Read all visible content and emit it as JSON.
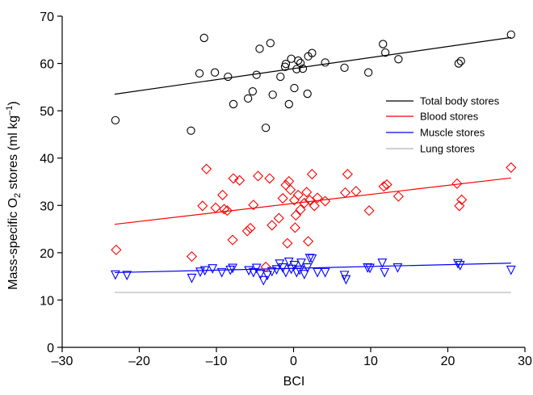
{
  "chart_data": {
    "type": "scatter",
    "xlabel": "BCI",
    "ylabel": {
      "prefix": "Mass-specific O",
      "sub": "2",
      "mid": " stores (ml kg",
      "sup": "–1",
      "suffix": ")"
    },
    "xlim": [
      -30,
      30
    ],
    "ylim": [
      0,
      70
    ],
    "xticks": [
      -30,
      -20,
      -10,
      0,
      10,
      20,
      30
    ],
    "yticks": [
      0,
      10,
      20,
      30,
      40,
      50,
      60,
      70
    ],
    "xtick_labels": [
      "–30",
      "–20",
      "–10",
      "0",
      "10",
      "20",
      "30"
    ],
    "ytick_labels": [
      "0",
      "10",
      "20",
      "30",
      "40",
      "50",
      "60",
      "70"
    ],
    "grid": false,
    "legend_position": "right",
    "series": [
      {
        "name": "Total body stores",
        "color": "#000000",
        "marker": "circle",
        "trend": [
          [
            -23.2,
            53.5
          ],
          [
            28.2,
            65.5
          ]
        ],
        "points": [
          [
            -23.1,
            48.0
          ],
          [
            -13.3,
            45.8
          ],
          [
            -12.2,
            57.9
          ],
          [
            -11.6,
            65.4
          ],
          [
            -10.2,
            58.1
          ],
          [
            -8.5,
            57.2
          ],
          [
            -7.8,
            51.4
          ],
          [
            -5.9,
            52.6
          ],
          [
            -5.3,
            54.1
          ],
          [
            -4.8,
            57.6
          ],
          [
            -4.4,
            63.1
          ],
          [
            -3.6,
            46.4
          ],
          [
            -3.0,
            64.3
          ],
          [
            -2.7,
            53.4
          ],
          [
            -1.7,
            57.2
          ],
          [
            -1.1,
            59.3
          ],
          [
            -1.0,
            59.9
          ],
          [
            -0.6,
            51.4
          ],
          [
            -0.3,
            61.0
          ],
          [
            0.1,
            54.8
          ],
          [
            0.4,
            58.8
          ],
          [
            0.6,
            60.6
          ],
          [
            0.9,
            60.1
          ],
          [
            1.2,
            58.9
          ],
          [
            1.8,
            53.6
          ],
          [
            1.9,
            61.5
          ],
          [
            2.4,
            62.2
          ],
          [
            4.1,
            60.2
          ],
          [
            6.6,
            59.1
          ],
          [
            9.7,
            58.1
          ],
          [
            11.6,
            64.1
          ],
          [
            11.9,
            62.3
          ],
          [
            13.6,
            60.9
          ],
          [
            21.4,
            60.0
          ],
          [
            21.7,
            60.5
          ],
          [
            28.2,
            66.1
          ]
        ]
      },
      {
        "name": "Blood stores",
        "color": "#ff0000",
        "marker": "diamond",
        "trend": [
          [
            -23.2,
            26.0
          ],
          [
            28.2,
            35.8
          ]
        ],
        "points": [
          [
            -23.0,
            20.6
          ],
          [
            -13.2,
            19.2
          ],
          [
            -11.8,
            29.9
          ],
          [
            -11.3,
            37.7
          ],
          [
            -10.1,
            29.5
          ],
          [
            -9.2,
            32.2
          ],
          [
            -9.0,
            29.2
          ],
          [
            -8.6,
            28.9
          ],
          [
            -7.9,
            22.7
          ],
          [
            -7.8,
            35.7
          ],
          [
            -7.0,
            35.3
          ],
          [
            -6.0,
            24.6
          ],
          [
            -5.6,
            25.2
          ],
          [
            -5.2,
            30.1
          ],
          [
            -4.6,
            36.2
          ],
          [
            -3.6,
            17.0
          ],
          [
            -3.1,
            35.7
          ],
          [
            -2.8,
            25.8
          ],
          [
            -1.9,
            27.3
          ],
          [
            -1.4,
            31.5
          ],
          [
            -1.0,
            34.3
          ],
          [
            -0.8,
            22.0
          ],
          [
            -0.6,
            35.1
          ],
          [
            -0.4,
            33.3
          ],
          [
            0.1,
            31.1
          ],
          [
            0.2,
            25.3
          ],
          [
            0.3,
            27.9
          ],
          [
            0.6,
            32.2
          ],
          [
            0.9,
            29.1
          ],
          [
            1.4,
            30.5
          ],
          [
            1.7,
            32.8
          ],
          [
            1.9,
            22.4
          ],
          [
            2.1,
            31.1
          ],
          [
            2.4,
            36.6
          ],
          [
            2.7,
            29.9
          ],
          [
            3.1,
            31.6
          ],
          [
            4.1,
            30.9
          ],
          [
            6.7,
            32.7
          ],
          [
            7.0,
            36.6
          ],
          [
            8.1,
            33.0
          ],
          [
            9.8,
            28.9
          ],
          [
            11.7,
            34.0
          ],
          [
            12.1,
            34.4
          ],
          [
            13.6,
            31.9
          ],
          [
            21.2,
            34.6
          ],
          [
            21.5,
            29.9
          ],
          [
            21.8,
            31.2
          ],
          [
            28.2,
            38.0
          ]
        ]
      },
      {
        "name": "Muscle stores",
        "color": "#0000ff",
        "marker": "triangle-down",
        "trend": [
          [
            -23.2,
            15.8
          ],
          [
            28.2,
            17.8
          ]
        ],
        "points": [
          [
            -23.1,
            15.4
          ],
          [
            -21.6,
            15.3
          ],
          [
            -13.2,
            14.7
          ],
          [
            -12.1,
            16.0
          ],
          [
            -11.5,
            16.3
          ],
          [
            -10.5,
            16.7
          ],
          [
            -9.3,
            15.9
          ],
          [
            -8.2,
            16.4
          ],
          [
            -7.9,
            16.8
          ],
          [
            -5.8,
            16.3
          ],
          [
            -5.2,
            15.9
          ],
          [
            -4.8,
            16.8
          ],
          [
            -4.3,
            15.5
          ],
          [
            -3.9,
            14.2
          ],
          [
            -3.4,
            15.3
          ],
          [
            -2.8,
            16.1
          ],
          [
            -2.2,
            16.5
          ],
          [
            -1.8,
            17.7
          ],
          [
            -1.4,
            16.9
          ],
          [
            -1.0,
            15.9
          ],
          [
            -0.6,
            18.1
          ],
          [
            -0.3,
            16.6
          ],
          [
            0.1,
            17.4
          ],
          [
            0.4,
            15.9
          ],
          [
            0.8,
            16.4
          ],
          [
            1.0,
            17.9
          ],
          [
            1.4,
            15.5
          ],
          [
            1.8,
            16.9
          ],
          [
            2.1,
            18.9
          ],
          [
            2.4,
            18.8
          ],
          [
            3.1,
            15.9
          ],
          [
            4.1,
            15.9
          ],
          [
            6.6,
            15.3
          ],
          [
            6.8,
            14.4
          ],
          [
            9.6,
            16.9
          ],
          [
            9.9,
            16.8
          ],
          [
            11.5,
            17.9
          ],
          [
            11.8,
            15.9
          ],
          [
            13.5,
            16.9
          ],
          [
            21.3,
            17.8
          ],
          [
            21.6,
            17.4
          ],
          [
            28.2,
            16.4
          ]
        ]
      },
      {
        "name": "Lung stores",
        "color": "#b3b3b3",
        "marker": "none",
        "trend": [
          [
            -23.2,
            11.6
          ],
          [
            28.2,
            11.6
          ]
        ],
        "points": []
      }
    ]
  }
}
